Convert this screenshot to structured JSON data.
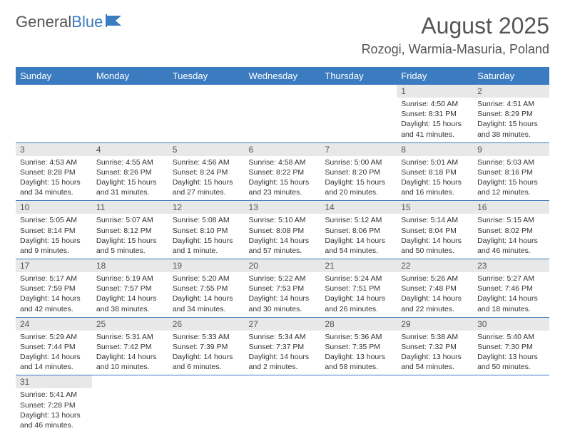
{
  "logo": {
    "general": "General",
    "blue": "Blue"
  },
  "title": "August 2025",
  "location": "Rozogi, Warmia-Masuria, Poland",
  "colors": {
    "header_bg": "#3b7bbf",
    "header_text": "#ffffff",
    "daynum_bg": "#e8e8e8",
    "text": "#333333",
    "border": "#3b7bbf"
  },
  "weekdays": [
    "Sunday",
    "Monday",
    "Tuesday",
    "Wednesday",
    "Thursday",
    "Friday",
    "Saturday"
  ],
  "weeks": [
    [
      null,
      null,
      null,
      null,
      null,
      {
        "n": "1",
        "sr": "Sunrise: 4:50 AM",
        "ss": "Sunset: 8:31 PM",
        "d1": "Daylight: 15 hours",
        "d2": "and 41 minutes."
      },
      {
        "n": "2",
        "sr": "Sunrise: 4:51 AM",
        "ss": "Sunset: 8:29 PM",
        "d1": "Daylight: 15 hours",
        "d2": "and 38 minutes."
      }
    ],
    [
      {
        "n": "3",
        "sr": "Sunrise: 4:53 AM",
        "ss": "Sunset: 8:28 PM",
        "d1": "Daylight: 15 hours",
        "d2": "and 34 minutes."
      },
      {
        "n": "4",
        "sr": "Sunrise: 4:55 AM",
        "ss": "Sunset: 8:26 PM",
        "d1": "Daylight: 15 hours",
        "d2": "and 31 minutes."
      },
      {
        "n": "5",
        "sr": "Sunrise: 4:56 AM",
        "ss": "Sunset: 8:24 PM",
        "d1": "Daylight: 15 hours",
        "d2": "and 27 minutes."
      },
      {
        "n": "6",
        "sr": "Sunrise: 4:58 AM",
        "ss": "Sunset: 8:22 PM",
        "d1": "Daylight: 15 hours",
        "d2": "and 23 minutes."
      },
      {
        "n": "7",
        "sr": "Sunrise: 5:00 AM",
        "ss": "Sunset: 8:20 PM",
        "d1": "Daylight: 15 hours",
        "d2": "and 20 minutes."
      },
      {
        "n": "8",
        "sr": "Sunrise: 5:01 AM",
        "ss": "Sunset: 8:18 PM",
        "d1": "Daylight: 15 hours",
        "d2": "and 16 minutes."
      },
      {
        "n": "9",
        "sr": "Sunrise: 5:03 AM",
        "ss": "Sunset: 8:16 PM",
        "d1": "Daylight: 15 hours",
        "d2": "and 12 minutes."
      }
    ],
    [
      {
        "n": "10",
        "sr": "Sunrise: 5:05 AM",
        "ss": "Sunset: 8:14 PM",
        "d1": "Daylight: 15 hours",
        "d2": "and 9 minutes."
      },
      {
        "n": "11",
        "sr": "Sunrise: 5:07 AM",
        "ss": "Sunset: 8:12 PM",
        "d1": "Daylight: 15 hours",
        "d2": "and 5 minutes."
      },
      {
        "n": "12",
        "sr": "Sunrise: 5:08 AM",
        "ss": "Sunset: 8:10 PM",
        "d1": "Daylight: 15 hours",
        "d2": "and 1 minute."
      },
      {
        "n": "13",
        "sr": "Sunrise: 5:10 AM",
        "ss": "Sunset: 8:08 PM",
        "d1": "Daylight: 14 hours",
        "d2": "and 57 minutes."
      },
      {
        "n": "14",
        "sr": "Sunrise: 5:12 AM",
        "ss": "Sunset: 8:06 PM",
        "d1": "Daylight: 14 hours",
        "d2": "and 54 minutes."
      },
      {
        "n": "15",
        "sr": "Sunrise: 5:14 AM",
        "ss": "Sunset: 8:04 PM",
        "d1": "Daylight: 14 hours",
        "d2": "and 50 minutes."
      },
      {
        "n": "16",
        "sr": "Sunrise: 5:15 AM",
        "ss": "Sunset: 8:02 PM",
        "d1": "Daylight: 14 hours",
        "d2": "and 46 minutes."
      }
    ],
    [
      {
        "n": "17",
        "sr": "Sunrise: 5:17 AM",
        "ss": "Sunset: 7:59 PM",
        "d1": "Daylight: 14 hours",
        "d2": "and 42 minutes."
      },
      {
        "n": "18",
        "sr": "Sunrise: 5:19 AM",
        "ss": "Sunset: 7:57 PM",
        "d1": "Daylight: 14 hours",
        "d2": "and 38 minutes."
      },
      {
        "n": "19",
        "sr": "Sunrise: 5:20 AM",
        "ss": "Sunset: 7:55 PM",
        "d1": "Daylight: 14 hours",
        "d2": "and 34 minutes."
      },
      {
        "n": "20",
        "sr": "Sunrise: 5:22 AM",
        "ss": "Sunset: 7:53 PM",
        "d1": "Daylight: 14 hours",
        "d2": "and 30 minutes."
      },
      {
        "n": "21",
        "sr": "Sunrise: 5:24 AM",
        "ss": "Sunset: 7:51 PM",
        "d1": "Daylight: 14 hours",
        "d2": "and 26 minutes."
      },
      {
        "n": "22",
        "sr": "Sunrise: 5:26 AM",
        "ss": "Sunset: 7:48 PM",
        "d1": "Daylight: 14 hours",
        "d2": "and 22 minutes."
      },
      {
        "n": "23",
        "sr": "Sunrise: 5:27 AM",
        "ss": "Sunset: 7:46 PM",
        "d1": "Daylight: 14 hours",
        "d2": "and 18 minutes."
      }
    ],
    [
      {
        "n": "24",
        "sr": "Sunrise: 5:29 AM",
        "ss": "Sunset: 7:44 PM",
        "d1": "Daylight: 14 hours",
        "d2": "and 14 minutes."
      },
      {
        "n": "25",
        "sr": "Sunrise: 5:31 AM",
        "ss": "Sunset: 7:42 PM",
        "d1": "Daylight: 14 hours",
        "d2": "and 10 minutes."
      },
      {
        "n": "26",
        "sr": "Sunrise: 5:33 AM",
        "ss": "Sunset: 7:39 PM",
        "d1": "Daylight: 14 hours",
        "d2": "and 6 minutes."
      },
      {
        "n": "27",
        "sr": "Sunrise: 5:34 AM",
        "ss": "Sunset: 7:37 PM",
        "d1": "Daylight: 14 hours",
        "d2": "and 2 minutes."
      },
      {
        "n": "28",
        "sr": "Sunrise: 5:36 AM",
        "ss": "Sunset: 7:35 PM",
        "d1": "Daylight: 13 hours",
        "d2": "and 58 minutes."
      },
      {
        "n": "29",
        "sr": "Sunrise: 5:38 AM",
        "ss": "Sunset: 7:32 PM",
        "d1": "Daylight: 13 hours",
        "d2": "and 54 minutes."
      },
      {
        "n": "30",
        "sr": "Sunrise: 5:40 AM",
        "ss": "Sunset: 7:30 PM",
        "d1": "Daylight: 13 hours",
        "d2": "and 50 minutes."
      }
    ],
    [
      {
        "n": "31",
        "sr": "Sunrise: 5:41 AM",
        "ss": "Sunset: 7:28 PM",
        "d1": "Daylight: 13 hours",
        "d2": "and 46 minutes."
      },
      null,
      null,
      null,
      null,
      null,
      null
    ]
  ]
}
